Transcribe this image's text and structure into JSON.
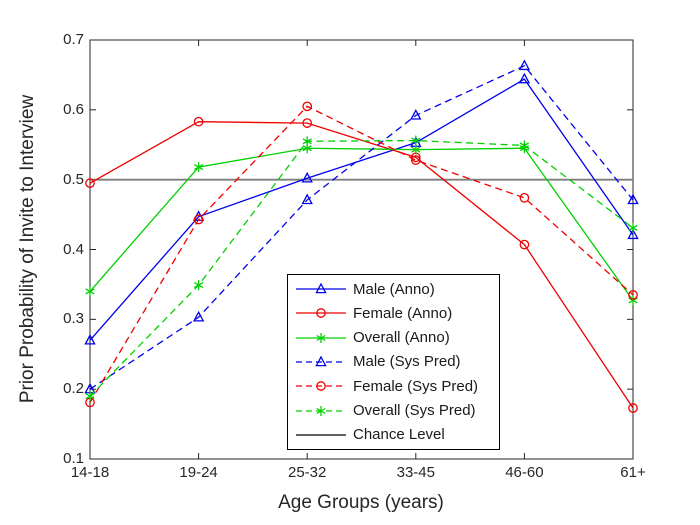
{
  "figure": {
    "background": "#ffffff",
    "frame_color": "#262626",
    "tick_color": "#262626"
  },
  "chart_data": {
    "type": "line",
    "title": "",
    "xlabel": "Age Groups (years)",
    "ylabel": "Prior Probability of Invite to Interview",
    "categories": [
      "14-18",
      "19-24",
      "25-32",
      "33-45",
      "46-60",
      "61+"
    ],
    "ylim": [
      0.1,
      0.7
    ],
    "yticks": [
      0.1,
      0.2,
      0.3,
      0.4,
      0.5,
      0.6,
      0.7
    ],
    "ytick_labels": [
      "0.1",
      "0.2",
      "0.3",
      "0.4",
      "0.5",
      "0.6",
      "0.7"
    ],
    "grid": false,
    "legend_position": "inside-lower-center",
    "series": [
      {
        "name": "Male (Anno)",
        "color": "#0000EE",
        "style": "solid",
        "marker": "triangle",
        "values": [
          0.27,
          0.447,
          0.502,
          0.553,
          0.644,
          0.421
        ]
      },
      {
        "name": "Female (Anno)",
        "color": "#F00000",
        "style": "solid",
        "marker": "circle",
        "values": [
          0.495,
          0.583,
          0.581,
          0.532,
          0.407,
          0.173
        ]
      },
      {
        "name": "Overall (Anno)",
        "color": "#00D000",
        "style": "solid",
        "marker": "asterisk",
        "values": [
          0.34,
          0.518,
          0.545,
          0.543,
          0.545,
          0.327
        ]
      },
      {
        "name": "Male (Sys Pred)",
        "color": "#0000EE",
        "style": "dashed",
        "marker": "triangle",
        "values": [
          0.2,
          0.303,
          0.471,
          0.592,
          0.663,
          0.471
        ]
      },
      {
        "name": "Female (Sys Pred)",
        "color": "#F00000",
        "style": "dashed",
        "marker": "circle",
        "values": [
          0.181,
          0.443,
          0.605,
          0.528,
          0.474,
          0.335
        ]
      },
      {
        "name": "Overall (Sys Pred)",
        "color": "#00D000",
        "style": "dashed",
        "marker": "asterisk",
        "values": [
          0.19,
          0.349,
          0.555,
          0.556,
          0.549,
          0.431
        ]
      },
      {
        "name": "Chance Level",
        "color": "#000000",
        "plot_color": "#7D7D7D",
        "style": "solid",
        "marker": "none",
        "values": [
          0.5,
          0.5,
          0.5,
          0.5,
          0.5,
          0.5
        ]
      }
    ]
  }
}
